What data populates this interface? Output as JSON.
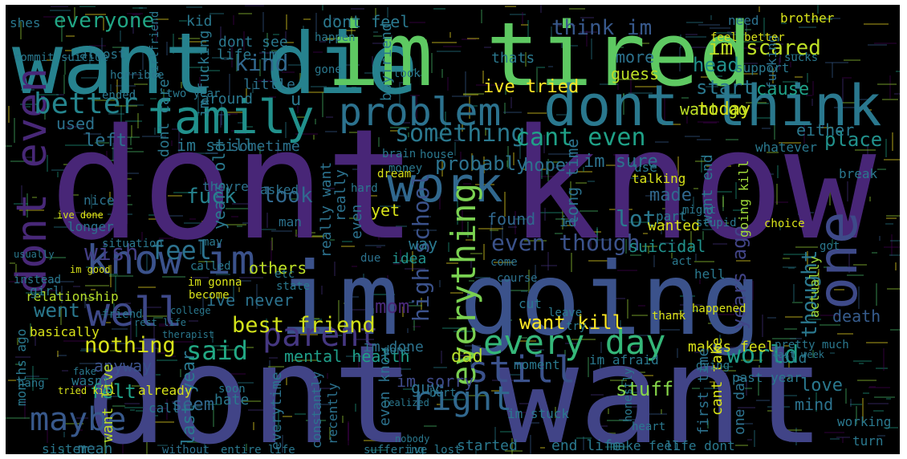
{
  "background_color": "#000000",
  "palette": [
    "#440154",
    "#46327e",
    "#365c8d",
    "#277f8e",
    "#1fa187",
    "#4ac16d",
    "#a0da39",
    "#fde725"
  ],
  "words": [
    {
      "text": "dont know",
      "color": "#482677"
    },
    {
      "text": "dont want",
      "color": "#414487"
    },
    {
      "text": "want die",
      "color": "#26828e"
    },
    {
      "text": "im tired",
      "color": "#5ec962"
    },
    {
      "text": "im going",
      "color": "#3b528b"
    },
    {
      "text": "dont think",
      "color": "#2a788e"
    },
    {
      "text": "family",
      "color": "#21918c"
    },
    {
      "text": "problem",
      "color": "#2c728e"
    },
    {
      "text": "work",
      "color": "#31688e"
    },
    {
      "text": "know im",
      "color": "#3b528b"
    },
    {
      "text": "well",
      "color": "#3e4989"
    },
    {
      "text": "one",
      "color": "#3e4a89"
    },
    {
      "text": "dont even",
      "color": "#482878"
    },
    {
      "text": "every day",
      "color": "#35b779"
    },
    {
      "text": "right",
      "color": "#31688e"
    },
    {
      "text": "still",
      "color": "#3b528b"
    },
    {
      "text": "maybe",
      "color": "#38598c"
    },
    {
      "text": "parent",
      "color": "#453781"
    },
    {
      "text": "everything",
      "color": "#7ad151"
    },
    {
      "text": "better",
      "color": "#25858e"
    },
    {
      "text": "something",
      "color": "#2a788e"
    },
    {
      "text": "cant even",
      "color": "#1fa187"
    },
    {
      "text": "high school",
      "color": "#3b528b"
    },
    {
      "text": "even though",
      "color": "#3b528b"
    },
    {
      "text": "best friend",
      "color": "#d2e21b"
    },
    {
      "text": "nothing",
      "color": "#d8e219"
    },
    {
      "text": "everyone",
      "color": "#21a685"
    },
    {
      "text": "think im",
      "color": "#38598c"
    },
    {
      "text": "im scared",
      "color": "#bddf26"
    },
    {
      "text": "feel",
      "color": "#2c728e"
    },
    {
      "text": "world",
      "color": "#1f9e89"
    },
    {
      "text": "said",
      "color": "#22a884"
    },
    {
      "text": "thought",
      "color": "#2a788e"
    },
    {
      "text": "mom",
      "color": "#482878"
    },
    {
      "text": "kind",
      "color": "#31688e"
    },
    {
      "text": "want kill",
      "color": "#fde725"
    },
    {
      "text": "wish",
      "color": "#433e85"
    },
    {
      "text": "lot",
      "color": "#2a788e"
    },
    {
      "text": "fuck",
      "color": "#26828e"
    },
    {
      "text": "went",
      "color": "#2a788e"
    },
    {
      "text": "look",
      "color": "#31688e"
    },
    {
      "text": "today",
      "color": "#d8e219"
    },
    {
      "text": "hope",
      "color": "#2c728e"
    },
    {
      "text": "probably",
      "color": "#2c728e"
    },
    {
      "text": "mental health",
      "color": "#1f9e89"
    },
    {
      "text": "im sorry",
      "color": "#3e4a89"
    },
    {
      "text": "dad",
      "color": "#b5de2b"
    },
    {
      "text": "years ago",
      "color": "#414487"
    },
    {
      "text": "death",
      "color": "#365c8d"
    },
    {
      "text": "anyway",
      "color": "#3b528b"
    },
    {
      "text": "felt",
      "color": "#1fa187"
    },
    {
      "text": "stuff",
      "color": "#86d549"
    },
    {
      "text": "seem",
      "color": "#31688e"
    },
    {
      "text": "last year",
      "color": "#2a788e"
    },
    {
      "text": "start",
      "color": "#2a788e"
    },
    {
      "text": "head",
      "color": "#21918c"
    },
    {
      "text": "cause",
      "color": "#1fa187"
    },
    {
      "text": "place",
      "color": "#21918c"
    },
    {
      "text": "either",
      "color": "#2a788e"
    },
    {
      "text": "years old",
      "color": "#2a788e"
    },
    {
      "text": "left",
      "color": "#2c728e"
    },
    {
      "text": "used",
      "color": "#2c728e"
    },
    {
      "text": "guess",
      "color": "#bddf26"
    },
    {
      "text": "more",
      "color": "#2c728e"
    },
    {
      "text": "sometime",
      "color": "#2c728e"
    },
    {
      "text": "ive tried",
      "color": "#fde725"
    },
    {
      "text": "want go",
      "color": "#bddf26"
    },
    {
      "text": "im sure",
      "color": "#2c728e"
    },
    {
      "text": "made",
      "color": "#31688e"
    },
    {
      "text": "long time",
      "color": "#2c728e"
    },
    {
      "text": "suicidal",
      "color": "#21918c"
    },
    {
      "text": "others",
      "color": "#bddf26"
    },
    {
      "text": "way",
      "color": "#2a788e"
    },
    {
      "text": "idea",
      "color": "#21918c"
    },
    {
      "text": "yet",
      "color": "#d8e219"
    },
    {
      "text": "around",
      "color": "#2a788e"
    },
    {
      "text": "little",
      "color": "#2c728e"
    },
    {
      "text": "thats",
      "color": "#2a788e"
    },
    {
      "text": "dont feel",
      "color": "#2a788e"
    },
    {
      "text": "dont see",
      "color": "#2a788e"
    },
    {
      "text": "life im",
      "color": "#2a788e"
    },
    {
      "text": "kid",
      "color": "#2a788e"
    },
    {
      "text": "im still",
      "color": "#2a788e"
    },
    {
      "text": "dont care",
      "color": "#2a788e"
    },
    {
      "text": "im fucking",
      "color": "#2a788e"
    },
    {
      "text": "ive never",
      "color": "#2c728e"
    },
    {
      "text": "everytime",
      "color": "#2c728e"
    },
    {
      "text": "even know",
      "color": "#2c728e"
    },
    {
      "text": "im done",
      "color": "#2c728e"
    },
    {
      "text": "guy",
      "color": "#2c728e"
    },
    {
      "text": "want live",
      "color": "#bddf26"
    },
    {
      "text": "hate",
      "color": "#2a788e"
    },
    {
      "text": "love",
      "color": "#2a788e"
    },
    {
      "text": "mind",
      "color": "#2c728e"
    },
    {
      "text": "cant take",
      "color": "#d8e219"
    },
    {
      "text": "makes feel",
      "color": "#d8e219"
    },
    {
      "text": "told",
      "color": "#2a788e"
    },
    {
      "text": "past year",
      "color": "#2a788e"
    },
    {
      "text": "first time",
      "color": "#2c728e"
    },
    {
      "text": "one day",
      "color": "#2c728e"
    },
    {
      "text": "working",
      "color": "#2a788e"
    },
    {
      "text": "turn",
      "color": "#2a788e"
    },
    {
      "text": "started",
      "color": "#2a788e"
    },
    {
      "text": "constantly",
      "color": "#2c728e"
    },
    {
      "text": "recently",
      "color": "#2c728e"
    },
    {
      "text": "actually",
      "color": "#a0da39"
    },
    {
      "text": "wanted",
      "color": "#d8e219"
    },
    {
      "text": "going kill",
      "color": "#a0da39"
    },
    {
      "text": "want end",
      "color": "#2a788e"
    },
    {
      "text": "even",
      "color": "#2c728e"
    },
    {
      "text": "found",
      "color": "#31688e"
    },
    {
      "text": "id",
      "color": "#2c728e"
    },
    {
      "text": "really want",
      "color": "#2c728e"
    },
    {
      "text": "really",
      "color": "#2c728e"
    },
    {
      "text": "relationship",
      "color": "#b5de2b"
    },
    {
      "text": "basically",
      "color": "#d8e219"
    },
    {
      "text": "months ago",
      "color": "#2a788e"
    },
    {
      "text": "sister",
      "color": "#2a788e"
    },
    {
      "text": "mean",
      "color": "#2a788e"
    },
    {
      "text": "without",
      "color": "#2c728e"
    },
    {
      "text": "end life",
      "color": "#2a788e"
    },
    {
      "text": "make feel",
      "color": "#2a788e"
    },
    {
      "text": "life dont",
      "color": "#2a788e"
    },
    {
      "text": "im stuck",
      "color": "#2a788e"
    },
    {
      "text": "entire life",
      "color": "#2a788e"
    },
    {
      "text": "ive lost",
      "color": "#2a788e"
    },
    {
      "text": "suffering",
      "color": "#2a788e"
    },
    {
      "text": "call",
      "color": "#2a788e"
    },
    {
      "text": "already",
      "color": "#d8e219"
    },
    {
      "text": "wasnt",
      "color": "#2a788e"
    },
    {
      "text": "boyfriend",
      "color": "#2a788e"
    },
    {
      "text": "u",
      "color": "#2a788e"
    },
    {
      "text": "shes",
      "color": "#2a788e"
    },
    {
      "text": "fucking",
      "color": "#2c728e"
    },
    {
      "text": "brother",
      "color": "#d8e219"
    },
    {
      "text": "need",
      "color": "#2c728e"
    },
    {
      "text": "support",
      "color": "#2a788e"
    },
    {
      "text": "feel better",
      "color": "#d8e219"
    },
    {
      "text": "ive done",
      "color": "#d8e219"
    },
    {
      "text": "im good",
      "color": "#d8e219"
    },
    {
      "text": "im gonna",
      "color": "#d8e219"
    },
    {
      "text": "become",
      "color": "#d8e219"
    },
    {
      "text": "instead",
      "color": "#2a788e"
    },
    {
      "text": "girl",
      "color": "#2a788e"
    },
    {
      "text": "usually",
      "color": "#2a788e"
    },
    {
      "text": "longer",
      "color": "#2c728e"
    },
    {
      "text": "nice",
      "color": "#2c728e"
    },
    {
      "text": "situation",
      "color": "#2a788e"
    },
    {
      "text": "may",
      "color": "#2a788e"
    },
    {
      "text": "called",
      "color": "#2a788e"
    },
    {
      "text": "asked",
      "color": "#2c728e"
    },
    {
      "text": "man",
      "color": "#2c728e"
    },
    {
      "text": "theyre",
      "color": "#2c728e"
    },
    {
      "text": "due",
      "color": "#2c728e"
    },
    {
      "text": "come",
      "color": "#2c728e"
    },
    {
      "text": "course",
      "color": "#2c728e"
    },
    {
      "text": "talking",
      "color": "#d8e219"
    },
    {
      "text": "dream",
      "color": "#d8e219"
    },
    {
      "text": "state",
      "color": "#2a788e"
    },
    {
      "text": "etc",
      "color": "#2a788e"
    },
    {
      "text": "hell",
      "color": "#2a788e"
    },
    {
      "text": "act",
      "color": "#2a788e"
    },
    {
      "text": "got",
      "color": "#2a788e"
    },
    {
      "text": "break",
      "color": "#2a788e"
    },
    {
      "text": "gone",
      "color": "#2a788e"
    },
    {
      "text": "took",
      "color": "#2a788e"
    },
    {
      "text": "brain",
      "color": "#2a788e"
    },
    {
      "text": "money",
      "color": "#2a788e"
    },
    {
      "text": "house",
      "color": "#2a788e"
    },
    {
      "text": "hard",
      "color": "#2a788e"
    },
    {
      "text": "leave",
      "color": "#2a788e"
    },
    {
      "text": "cut",
      "color": "#2a788e"
    },
    {
      "text": "dying",
      "color": "#2a788e"
    },
    {
      "text": "whatever",
      "color": "#2a788e"
    },
    {
      "text": "use",
      "color": "#2a788e"
    },
    {
      "text": "part",
      "color": "#2a788e"
    },
    {
      "text": "might",
      "color": "#2a788e"
    },
    {
      "text": "choice",
      "color": "#d8e219"
    },
    {
      "text": "happened",
      "color": "#d8e219"
    },
    {
      "text": "thank",
      "color": "#d8e219"
    },
    {
      "text": "ended",
      "color": "#2a788e"
    },
    {
      "text": "two year",
      "color": "#2a788e"
    },
    {
      "text": "girlfriend",
      "color": "#2a788e"
    },
    {
      "text": "happen",
      "color": "#2a788e"
    },
    {
      "text": "commit suicide",
      "color": "#2a788e"
    },
    {
      "text": "almost",
      "color": "#2a788e"
    },
    {
      "text": "horrible",
      "color": "#2a788e"
    },
    {
      "text": "friend",
      "color": "#2a788e"
    },
    {
      "text": "done",
      "color": "#2a788e"
    },
    {
      "text": "hurt",
      "color": "#2a788e"
    },
    {
      "text": "pretty much",
      "color": "#2a788e"
    },
    {
      "text": "last week",
      "color": "#2a788e"
    },
    {
      "text": "heart",
      "color": "#2a788e"
    },
    {
      "text": "tried kill",
      "color": "#d8e219"
    },
    {
      "text": "fake",
      "color": "#2a788e"
    },
    {
      "text": "hang",
      "color": "#2a788e"
    },
    {
      "text": "nobody",
      "color": "#2a788e"
    },
    {
      "text": "soon",
      "color": "#2a788e"
    },
    {
      "text": "realized",
      "color": "#2a788e"
    },
    {
      "text": "therapist",
      "color": "#2a788e"
    },
    {
      "text": "college",
      "color": "#2a788e"
    },
    {
      "text": "rest life",
      "color": "#2a788e"
    },
    {
      "text": "im afraid",
      "color": "#2a788e"
    },
    {
      "text": "moment",
      "color": "#2a788e"
    },
    {
      "text": "stupid",
      "color": "#2a788e"
    },
    {
      "text": "honestly",
      "color": "#2a788e"
    },
    {
      "text": "try",
      "color": "#2a788e"
    },
    {
      "text": "sucks",
      "color": "#2a788e"
    }
  ]
}
